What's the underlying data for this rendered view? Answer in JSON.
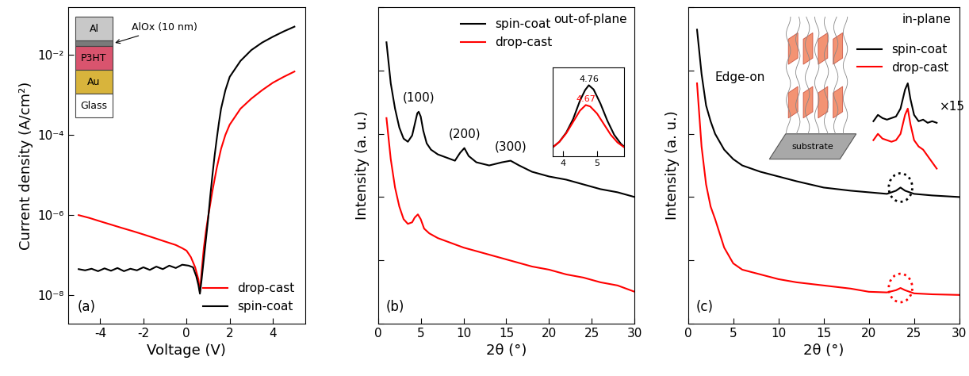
{
  "chart_data": [
    {
      "type": "line",
      "panel_label": "(a)",
      "x_label": "Voltage (V)",
      "y_label": "Current density (A/cm²)",
      "log": "y",
      "grid": false,
      "legend": "lower right",
      "xlim": [
        -5.5,
        5.5
      ],
      "xticks": [
        -4,
        -2,
        0,
        2,
        4
      ],
      "ylim": [
        2e-09,
        0.15
      ],
      "yticks": [
        {
          "value": 1e-08,
          "label": "10⁻⁸"
        },
        {
          "value": 1e-06,
          "label": "10⁻⁶"
        },
        {
          "value": 0.0001,
          "label": "10⁻⁴"
        },
        {
          "value": 0.01,
          "label": "10⁻²"
        }
      ],
      "device_stack": {
        "layers": [
          "Al",
          null,
          "P3HT",
          "Au",
          "Glass"
        ],
        "annotation": "AlOx (10 nm)"
      },
      "series": [
        {
          "name": "drop-cast",
          "color": "#ff0000",
          "x": [
            -5,
            -4.5,
            -4,
            -3.5,
            -3,
            -2.5,
            -2,
            -1.5,
            -1,
            -0.5,
            -0.2,
            0,
            0.2,
            0.4,
            0.55,
            0.62,
            0.7,
            0.8,
            0.9,
            1,
            1.2,
            1.4,
            1.6,
            1.8,
            2,
            2.5,
            3,
            3.5,
            4,
            4.5,
            5
          ],
          "values": [
            1e-06,
            8.5e-07,
            7e-07,
            5.8e-07,
            4.8e-07,
            4e-07,
            3.3e-07,
            2.7e-07,
            2.2e-07,
            1.8e-07,
            1.5e-07,
            1.3e-07,
            9e-08,
            5e-08,
            2.5e-08,
            1.2e-08,
            4e-08,
            1.5e-07,
            4e-07,
            9e-07,
            4e-06,
            1.5e-05,
            4.5e-05,
            0.0001,
            0.00018,
            0.00045,
            0.0008,
            0.0013,
            0.002,
            0.0028,
            0.0038
          ]
        },
        {
          "name": "spin-coat",
          "color": "#000000",
          "x": [
            -5,
            -4.7,
            -4.4,
            -4.1,
            -3.8,
            -3.5,
            -3.2,
            -2.9,
            -2.6,
            -2.3,
            -2,
            -1.7,
            -1.4,
            -1.1,
            -0.8,
            -0.5,
            -0.2,
            0.1,
            0.3,
            0.45,
            0.55,
            0.62,
            0.7,
            0.8,
            0.9,
            1,
            1.1,
            1.2,
            1.3,
            1.4,
            1.5,
            1.6,
            1.8,
            2,
            2.5,
            3,
            3.5,
            4,
            4.5,
            5
          ],
          "values": [
            4.5e-08,
            4.2e-08,
            4.6e-08,
            4e-08,
            4.7e-08,
            4.1e-08,
            4.8e-08,
            4e-08,
            4.6e-08,
            4.2e-08,
            5e-08,
            4.3e-08,
            5.2e-08,
            4.5e-08,
            5.5e-08,
            4.8e-08,
            5.8e-08,
            5.5e-08,
            5e-08,
            3e-08,
            1.8e-08,
            1.1e-08,
            2.5e-08,
            8e-08,
            2.5e-07,
            8e-07,
            3e-06,
            1e-05,
            3e-05,
            8e-05,
            0.0002,
            0.00045,
            0.0013,
            0.0028,
            0.007,
            0.013,
            0.02,
            0.028,
            0.038,
            0.05
          ]
        }
      ]
    },
    {
      "type": "line",
      "panel_label": "(b)",
      "annotation": "out-of-plane",
      "x_label": "2θ (°)",
      "y_label": "Intensity (a. u.)",
      "grid": false,
      "legend": "upper center",
      "tick_labels": "x",
      "xlim": [
        0,
        30
      ],
      "xticks": [
        0,
        5,
        10,
        15,
        20,
        25,
        30
      ],
      "ylim": [
        0,
        10
      ],
      "yticks": [
        0,
        2,
        4,
        6,
        8,
        10
      ],
      "series": [
        {
          "name": "spin-coat",
          "color": "#000000",
          "x": [
            1,
            1.5,
            2,
            2.5,
            3,
            3.5,
            4,
            4.3,
            4.6,
            4.76,
            5,
            5.3,
            5.7,
            6.2,
            7,
            8,
            9,
            9.6,
            10.1,
            10.6,
            11.5,
            13,
            14.5,
            15.5,
            16.5,
            18,
            20,
            22,
            24,
            26,
            28,
            30
          ],
          "values": [
            8.9,
            7.6,
            6.8,
            6.2,
            5.85,
            5.75,
            5.95,
            6.3,
            6.65,
            6.7,
            6.55,
            6.1,
            5.7,
            5.5,
            5.35,
            5.25,
            5.15,
            5.4,
            5.55,
            5.3,
            5.1,
            5.0,
            5.1,
            5.15,
            5.0,
            4.8,
            4.65,
            4.55,
            4.4,
            4.25,
            4.15,
            4.0
          ],
          "peaks": [
            {
              "label": "(100)",
              "x": 4.76
            },
            {
              "label": "(200)",
              "x": 10.1
            },
            {
              "label": "(300)",
              "x": 15.5
            }
          ]
        },
        {
          "name": "drop-cast",
          "color": "#ff0000",
          "x": [
            1,
            1.5,
            2,
            2.5,
            3,
            3.5,
            4,
            4.3,
            4.67,
            5,
            5.4,
            6,
            7,
            8,
            10,
            12,
            14,
            16,
            18,
            20,
            22,
            24,
            26,
            28,
            30
          ],
          "values": [
            6.5,
            5.2,
            4.3,
            3.7,
            3.3,
            3.15,
            3.2,
            3.35,
            3.45,
            3.3,
            3.0,
            2.85,
            2.7,
            2.6,
            2.4,
            2.25,
            2.1,
            1.95,
            1.8,
            1.7,
            1.55,
            1.45,
            1.3,
            1.2,
            1.0
          ]
        }
      ],
      "inset": {
        "type": "line",
        "tick_labels": "x",
        "xlim": [
          3.7,
          5.8
        ],
        "xticks": [
          4,
          5
        ],
        "ylim": [
          0,
          1.25
        ],
        "yticks": [],
        "series": [
          {
            "color": "#000000",
            "peak": 4.76,
            "x": [
              3.7,
              3.9,
              4.1,
              4.3,
              4.5,
              4.65,
              4.76,
              4.9,
              5.1,
              5.3,
              5.5,
              5.7,
              5.8
            ],
            "values": [
              0.12,
              0.2,
              0.33,
              0.52,
              0.78,
              0.93,
              1.0,
              0.94,
              0.74,
              0.5,
              0.3,
              0.17,
              0.13
            ]
          },
          {
            "color": "#ff0000",
            "peak": 4.67,
            "x": [
              3.7,
              3.9,
              4.1,
              4.3,
              4.5,
              4.67,
              4.8,
              5.0,
              5.2,
              5.4,
              5.6,
              5.8
            ],
            "values": [
              0.12,
              0.2,
              0.32,
              0.48,
              0.64,
              0.72,
              0.7,
              0.6,
              0.45,
              0.3,
              0.19,
              0.12
            ]
          }
        ]
      }
    },
    {
      "type": "line",
      "panel_label": "(c)",
      "annotation": "in-plane",
      "x_label": "2θ (°)",
      "y_label": "Intensity (a. u.)",
      "grid": false,
      "legend": "upper right",
      "tick_labels": "x",
      "xlim": [
        0,
        30
      ],
      "xticks": [
        0,
        5,
        10,
        15,
        20,
        25,
        30
      ],
      "ylim": [
        0,
        10
      ],
      "yticks": [
        0,
        2,
        4,
        6,
        8,
        10
      ],
      "schematic": {
        "label": "Edge-on",
        "substrate_label": "substrate"
      },
      "series": [
        {
          "name": "spin-coat",
          "color": "#000000",
          "circled": 23.5,
          "x": [
            1,
            1.5,
            2,
            2.5,
            3,
            4,
            5,
            6,
            8,
            10,
            12,
            15,
            18,
            20,
            22,
            23,
            23.5,
            24,
            25,
            27,
            30
          ],
          "values": [
            9.3,
            7.9,
            6.9,
            6.4,
            6.0,
            5.5,
            5.2,
            5.0,
            4.8,
            4.65,
            4.5,
            4.3,
            4.2,
            4.15,
            4.1,
            4.2,
            4.3,
            4.2,
            4.1,
            4.05,
            4.0
          ]
        },
        {
          "name": "drop-cast",
          "color": "#ff0000",
          "circled": 23.5,
          "x": [
            1,
            1.5,
            2,
            2.5,
            3,
            4,
            5,
            6,
            8,
            10,
            12,
            15,
            18,
            20,
            22,
            23,
            23.5,
            24,
            25,
            27,
            30
          ],
          "values": [
            7.6,
            5.6,
            4.4,
            3.7,
            3.3,
            2.4,
            1.9,
            1.7,
            1.55,
            1.4,
            1.3,
            1.2,
            1.1,
            1.0,
            0.98,
            1.05,
            1.12,
            1.05,
            0.95,
            0.92,
            0.9
          ]
        }
      ],
      "zoom": {
        "label": "×15",
        "series": [
          {
            "color": "#000000",
            "x": [
              20.5,
              21,
              21.5,
              22,
              22.5,
              23,
              23.5,
              24,
              24.3,
              24.6,
              25,
              25.5,
              26,
              26.5,
              27,
              27.5
            ],
            "values": [
              6.4,
              6.6,
              6.5,
              6.45,
              6.5,
              6.55,
              6.8,
              7.4,
              7.6,
              7.1,
              6.6,
              6.4,
              6.45,
              6.35,
              6.4,
              6.35
            ]
          },
          {
            "color": "#ff0000",
            "x": [
              20.5,
              21,
              21.5,
              22,
              22.5,
              23,
              23.5,
              24,
              24.3,
              24.6,
              25,
              25.5,
              26,
              26.5,
              27,
              27.5
            ],
            "values": [
              5.8,
              6.0,
              5.85,
              5.8,
              5.75,
              5.8,
              6.0,
              6.6,
              6.8,
              6.3,
              5.8,
              5.6,
              5.5,
              5.3,
              5.1,
              4.9
            ]
          }
        ]
      }
    }
  ]
}
